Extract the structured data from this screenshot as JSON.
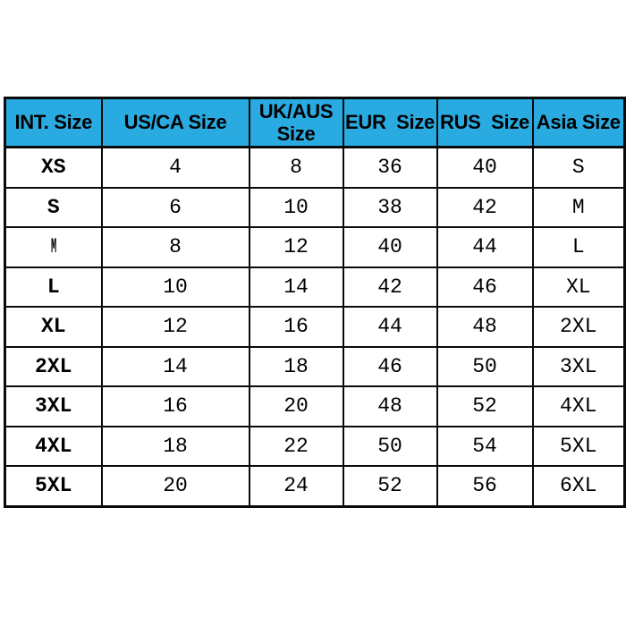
{
  "page": {
    "background_color": "#ffffff",
    "description": "International clothing size conversion chart"
  },
  "table": {
    "header_bg_color": "#29abe2",
    "header_text_color": "#000000",
    "border_color": "#0a0a0a",
    "body_bg_color": "#ffffff",
    "columns": [
      "INT. Size",
      "US/CA Size",
      "UK/AUS\nSize",
      "EUR  Size",
      "RUS  Size",
      "Asia Size"
    ],
    "rows": [
      [
        "XS",
        "4",
        "8",
        "36",
        "40",
        "S"
      ],
      [
        "S",
        "6",
        "10",
        "38",
        "42",
        "M"
      ],
      [
        "M",
        "8",
        "12",
        "40",
        "44",
        "L"
      ],
      [
        "L",
        "10",
        "14",
        "42",
        "46",
        "XL"
      ],
      [
        "XL",
        "12",
        "16",
        "44",
        "48",
        "2XL"
      ],
      [
        "2XL",
        "14",
        "18",
        "46",
        "50",
        "3XL"
      ],
      [
        "3XL",
        "16",
        "20",
        "48",
        "52",
        "4XL"
      ],
      [
        "4XL",
        "18",
        "22",
        "50",
        "54",
        "5XL"
      ],
      [
        "5XL",
        "20",
        "24",
        "52",
        "56",
        "6XL"
      ]
    ]
  }
}
